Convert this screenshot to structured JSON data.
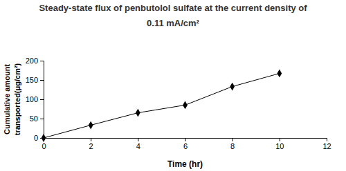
{
  "chart_data": {
    "type": "line",
    "title": "Steady-state flux of penbutolol sulfate at the current density of\n0.11 mA/cm²",
    "x_label": "Time (hr)",
    "y_label": "Cumulative amount\ntransported(μg/cm²)",
    "x": [
      0,
      2,
      4,
      6,
      8,
      10
    ],
    "values": [
      0,
      33,
      65,
      85,
      133,
      167
    ],
    "color": "#000000",
    "marker": "diamond",
    "line_style": "solid",
    "xlim": [
      0,
      12
    ],
    "xticks": [
      0,
      2,
      4,
      6,
      8,
      10,
      12
    ],
    "ylim": [
      0,
      200
    ],
    "yticks": [
      0,
      50,
      100,
      150,
      200
    ],
    "grid": false
  }
}
